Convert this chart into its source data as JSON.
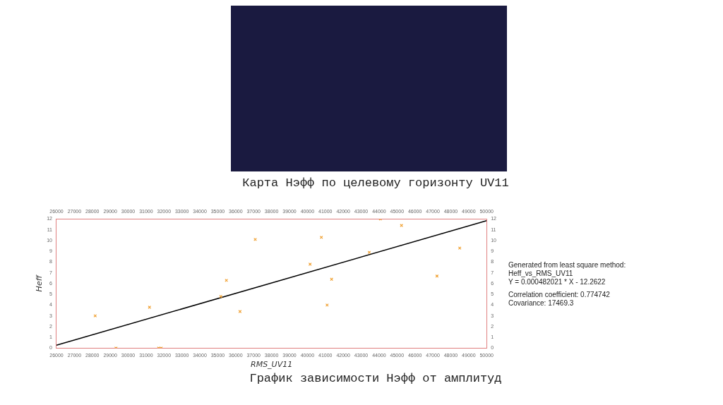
{
  "chart_data": {
    "type": "scatter",
    "title": "График зависимости Нэфф от амплитуд",
    "xlabel": "RMS_UV11",
    "ylabel": "Heff",
    "annotations": [
      "Карта Нэфф по целевому горизонту UV11",
      "Generated from least square method:\nHeff_vs_RMS_UV11\nY = 0.000482021 * X - 12.2622",
      "Correlation coefficient: 0.774742\nCovariance: 17469.3"
    ],
    "series": [
      {
        "type": "scatter",
        "color": "#f0a030",
        "x": [
          28160,
          29320,
          31190,
          31700,
          31840,
          35170,
          35480,
          36240,
          37090,
          40150,
          40780,
          41350,
          41100,
          43450,
          44070,
          45250,
          47230,
          48500
        ],
        "values": [
          3.0,
          0,
          3.8,
          0,
          0,
          4.8,
          6.3,
          3.4,
          10.1,
          7.8,
          10.3,
          6.4,
          4.0,
          8.9,
          12.0,
          11.4,
          6.7,
          9.3
        ]
      },
      {
        "type": "line",
        "marker": "none",
        "color": "#000000",
        "x": [
          26000,
          50000
        ],
        "values": [
          0.27,
          11.84
        ]
      }
    ],
    "xlim": [
      26000,
      50000
    ],
    "xticks": [
      26000,
      27000,
      28000,
      29000,
      30000,
      31000,
      32000,
      33000,
      34000,
      35000,
      36000,
      37000,
      38000,
      39000,
      40000,
      41000,
      42000,
      43000,
      44000,
      45000,
      46000,
      47000,
      48000,
      49000,
      50000
    ],
    "x2lim": [
      26000,
      50000
    ],
    "x2ticks": [
      26000,
      27000,
      28000,
      29000,
      30000,
      31000,
      32000,
      33000,
      34000,
      35000,
      36000,
      37000,
      38000,
      39000,
      40000,
      41000,
      42000,
      43000,
      44000,
      45000,
      46000,
      47000,
      48000,
      49000,
      50000
    ],
    "ylim": [
      0,
      12
    ],
    "yticks": [
      0,
      1,
      2,
      3,
      4,
      5,
      6,
      7,
      8,
      9,
      10,
      11,
      12
    ],
    "y2lim": [
      0,
      12
    ],
    "y2ticks": [
      0,
      1,
      2,
      3,
      4,
      5,
      6,
      7,
      8,
      9,
      10,
      11,
      12
    ],
    "grid": false,
    "legend": false,
    "marker": "cross",
    "line_style": "solid"
  }
}
